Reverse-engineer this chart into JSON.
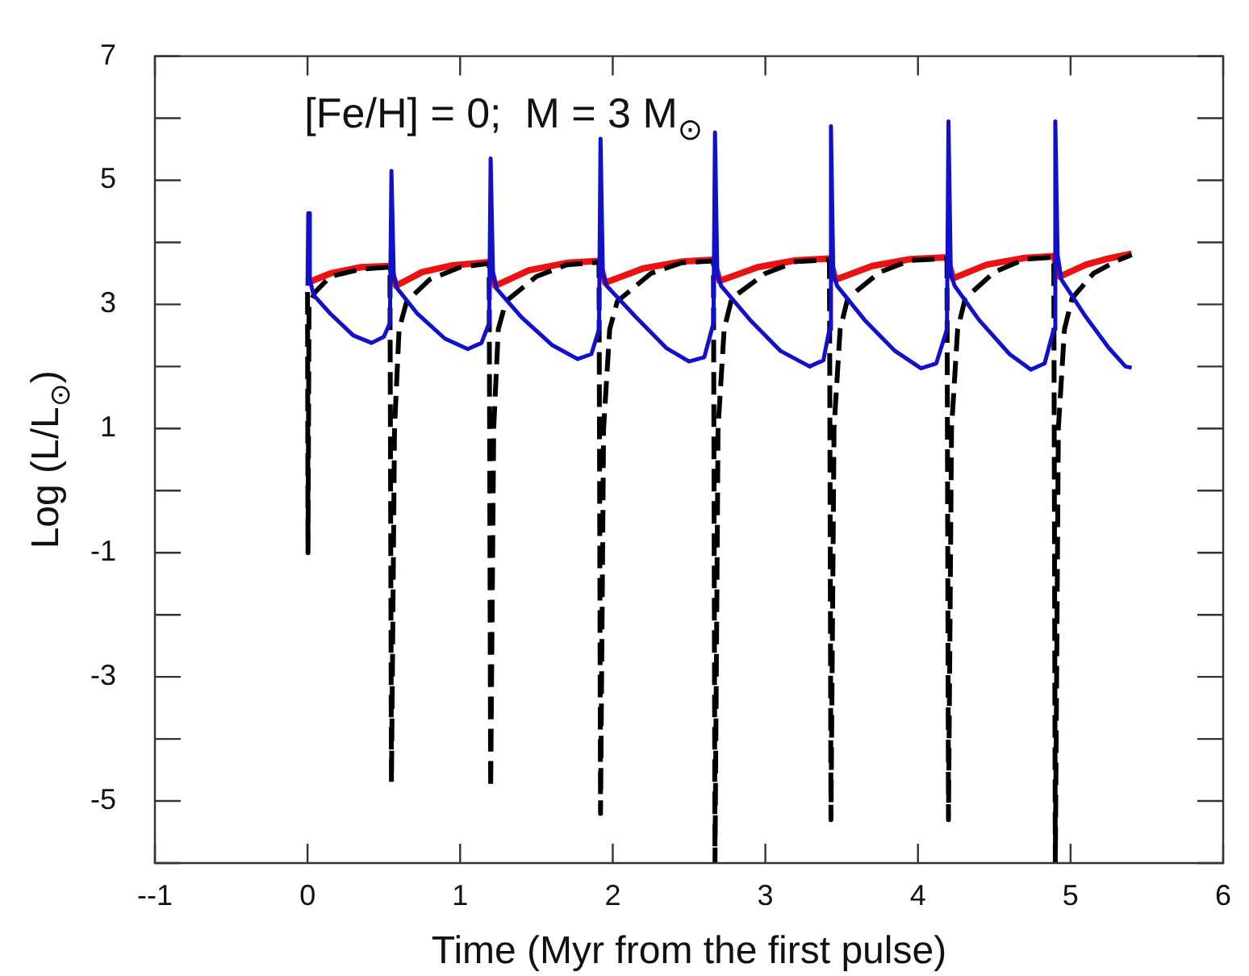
{
  "chart_data": {
    "type": "line",
    "xlabel": "Time (Myr from the first pulse)",
    "ylabel": "Log (L/L$_{⊙}$)",
    "annotations": [
      "[Fe/H] = 0;  M = 3 M$_{⊙}$"
    ],
    "xlim": [
      -1,
      6
    ],
    "xticks": [
      {
        "value": -1,
        "label": "--1"
      },
      0,
      1,
      2,
      3,
      4,
      5,
      6
    ],
    "ylim": [
      -6,
      7
    ],
    "yticks": [
      {
        "value": -6,
        "label": null
      },
      -5,
      {
        "value": -4,
        "label": null
      },
      -3,
      {
        "value": -2,
        "label": null
      },
      -1,
      {
        "value": 0,
        "label": null
      },
      1,
      {
        "value": 2,
        "label": null
      },
      3,
      {
        "value": 4,
        "label": null
      },
      5,
      {
        "value": 6,
        "label": null
      },
      7
    ],
    "grid": false,
    "legend": false,
    "marker": "none",
    "series": [
      {
        "color": "#ee1111",
        "line_style": "solid",
        "x": [
          0,
          0.15,
          0.35,
          0.54,
          0.58,
          0.75,
          0.95,
          1.19,
          1.23,
          1.45,
          1.7,
          1.91,
          1.95,
          2.2,
          2.45,
          2.66,
          2.7,
          2.95,
          3.2,
          3.42,
          3.46,
          3.7,
          3.95,
          4.19,
          4.23,
          4.45,
          4.7,
          4.89,
          4.93,
          5.1,
          5.25,
          5.4
        ],
        "values": [
          3.35,
          3.5,
          3.6,
          3.62,
          3.3,
          3.52,
          3.63,
          3.68,
          3.3,
          3.55,
          3.67,
          3.7,
          3.35,
          3.58,
          3.69,
          3.72,
          3.38,
          3.6,
          3.71,
          3.74,
          3.4,
          3.62,
          3.73,
          3.76,
          3.42,
          3.64,
          3.75,
          3.78,
          3.45,
          3.64,
          3.74,
          3.82
        ]
      },
      {
        "color": "#000000",
        "line_style": "dashed",
        "x": [
          0,
          0.003,
          0.01,
          0.05,
          0.15,
          0.35,
          0.54,
          0.55,
          0.57,
          0.6,
          0.65,
          0.8,
          1.0,
          1.19,
          1.2,
          1.22,
          1.25,
          1.3,
          1.5,
          1.7,
          1.91,
          1.92,
          1.94,
          1.98,
          2.03,
          2.25,
          2.45,
          2.66,
          2.67,
          2.69,
          2.73,
          2.78,
          3.0,
          3.2,
          3.42,
          3.43,
          3.45,
          3.49,
          3.54,
          3.75,
          3.95,
          4.19,
          4.2,
          4.22,
          4.26,
          4.31,
          4.5,
          4.7,
          4.89,
          4.9,
          4.92,
          4.96,
          5.01,
          5.15,
          5.3,
          5.4
        ],
        "values": [
          3.2,
          -1,
          3.0,
          3.2,
          3.45,
          3.57,
          3.6,
          -4.7,
          1.0,
          2.6,
          3.05,
          3.4,
          3.6,
          3.66,
          -4.8,
          1.0,
          2.6,
          3.05,
          3.45,
          3.64,
          3.68,
          -5.2,
          1.0,
          2.6,
          3.05,
          3.5,
          3.67,
          3.7,
          -6,
          1.0,
          2.6,
          3.1,
          3.5,
          3.69,
          3.72,
          -5.3,
          1.0,
          2.6,
          3.1,
          3.52,
          3.71,
          3.74,
          -5.3,
          1.0,
          2.6,
          3.1,
          3.52,
          3.73,
          3.76,
          -6,
          1.0,
          2.6,
          3.1,
          3.5,
          3.7,
          3.8
        ]
      },
      {
        "color": "#1111cc",
        "line_style": "solid",
        "x": [
          0,
          0.005,
          0.015,
          0.04,
          0.15,
          0.3,
          0.42,
          0.5,
          0.54,
          0.55,
          0.565,
          0.59,
          0.72,
          0.9,
          1.05,
          1.14,
          1.19,
          1.2,
          1.215,
          1.24,
          1.4,
          1.6,
          1.77,
          1.86,
          1.91,
          1.92,
          1.935,
          1.96,
          2.15,
          2.35,
          2.5,
          2.6,
          2.66,
          2.67,
          2.685,
          2.71,
          2.9,
          3.1,
          3.29,
          3.38,
          3.42,
          3.43,
          3.445,
          3.47,
          3.65,
          3.85,
          4.02,
          4.12,
          4.19,
          4.2,
          4.215,
          4.24,
          4.4,
          4.6,
          4.74,
          4.83,
          4.89,
          4.9,
          4.915,
          4.94,
          5.1,
          5.25,
          5.36,
          5.4
        ],
        "values": [
          3.3,
          4.47,
          3.4,
          3.15,
          2.85,
          2.5,
          2.38,
          2.48,
          2.7,
          5.15,
          3.45,
          3.25,
          2.85,
          2.45,
          2.28,
          2.38,
          2.7,
          5.35,
          3.5,
          3.25,
          2.8,
          2.35,
          2.12,
          2.2,
          2.6,
          5.67,
          3.5,
          3.3,
          2.8,
          2.3,
          2.08,
          2.15,
          2.7,
          5.77,
          3.5,
          3.3,
          2.75,
          2.25,
          2.0,
          2.1,
          2.6,
          5.87,
          3.5,
          3.3,
          2.75,
          2.25,
          1.97,
          2.05,
          2.6,
          5.95,
          3.5,
          3.3,
          2.75,
          2.2,
          1.95,
          2.05,
          2.6,
          5.95,
          3.8,
          3.4,
          2.8,
          2.3,
          2.0,
          1.98
        ]
      }
    ]
  }
}
